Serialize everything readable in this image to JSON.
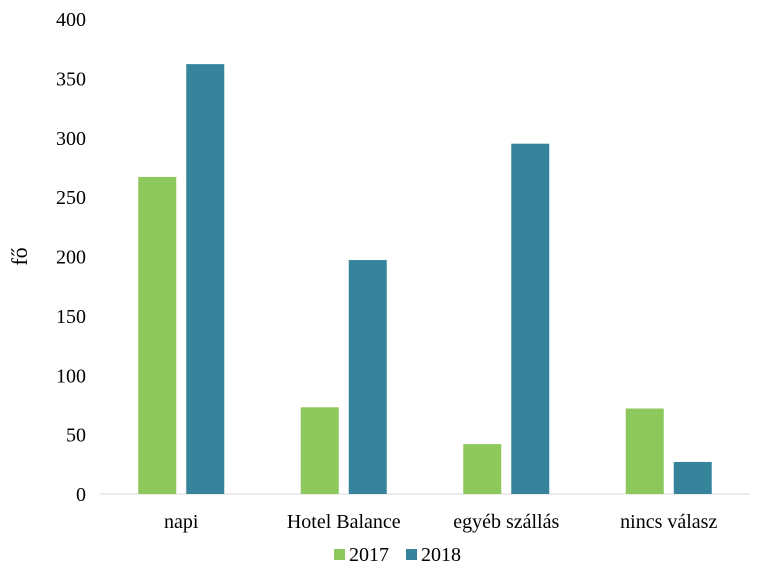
{
  "chart_data": {
    "type": "bar",
    "title": "",
    "xlabel": "",
    "ylabel": "fő",
    "ylim": [
      0,
      400
    ],
    "yticks": [
      0,
      50,
      100,
      150,
      200,
      250,
      300,
      350,
      400
    ],
    "categories": [
      "napi",
      "Hotel Balance",
      "egyéb szállás",
      "nincs válasz"
    ],
    "series": [
      {
        "name": "2017",
        "color": "#8dc85c",
        "values": [
          267,
          73,
          42,
          72
        ]
      },
      {
        "name": "2018",
        "color": "#36849b",
        "values": [
          362,
          197,
          295,
          27
        ]
      }
    ],
    "grid": false,
    "legend_position": "bottom"
  }
}
